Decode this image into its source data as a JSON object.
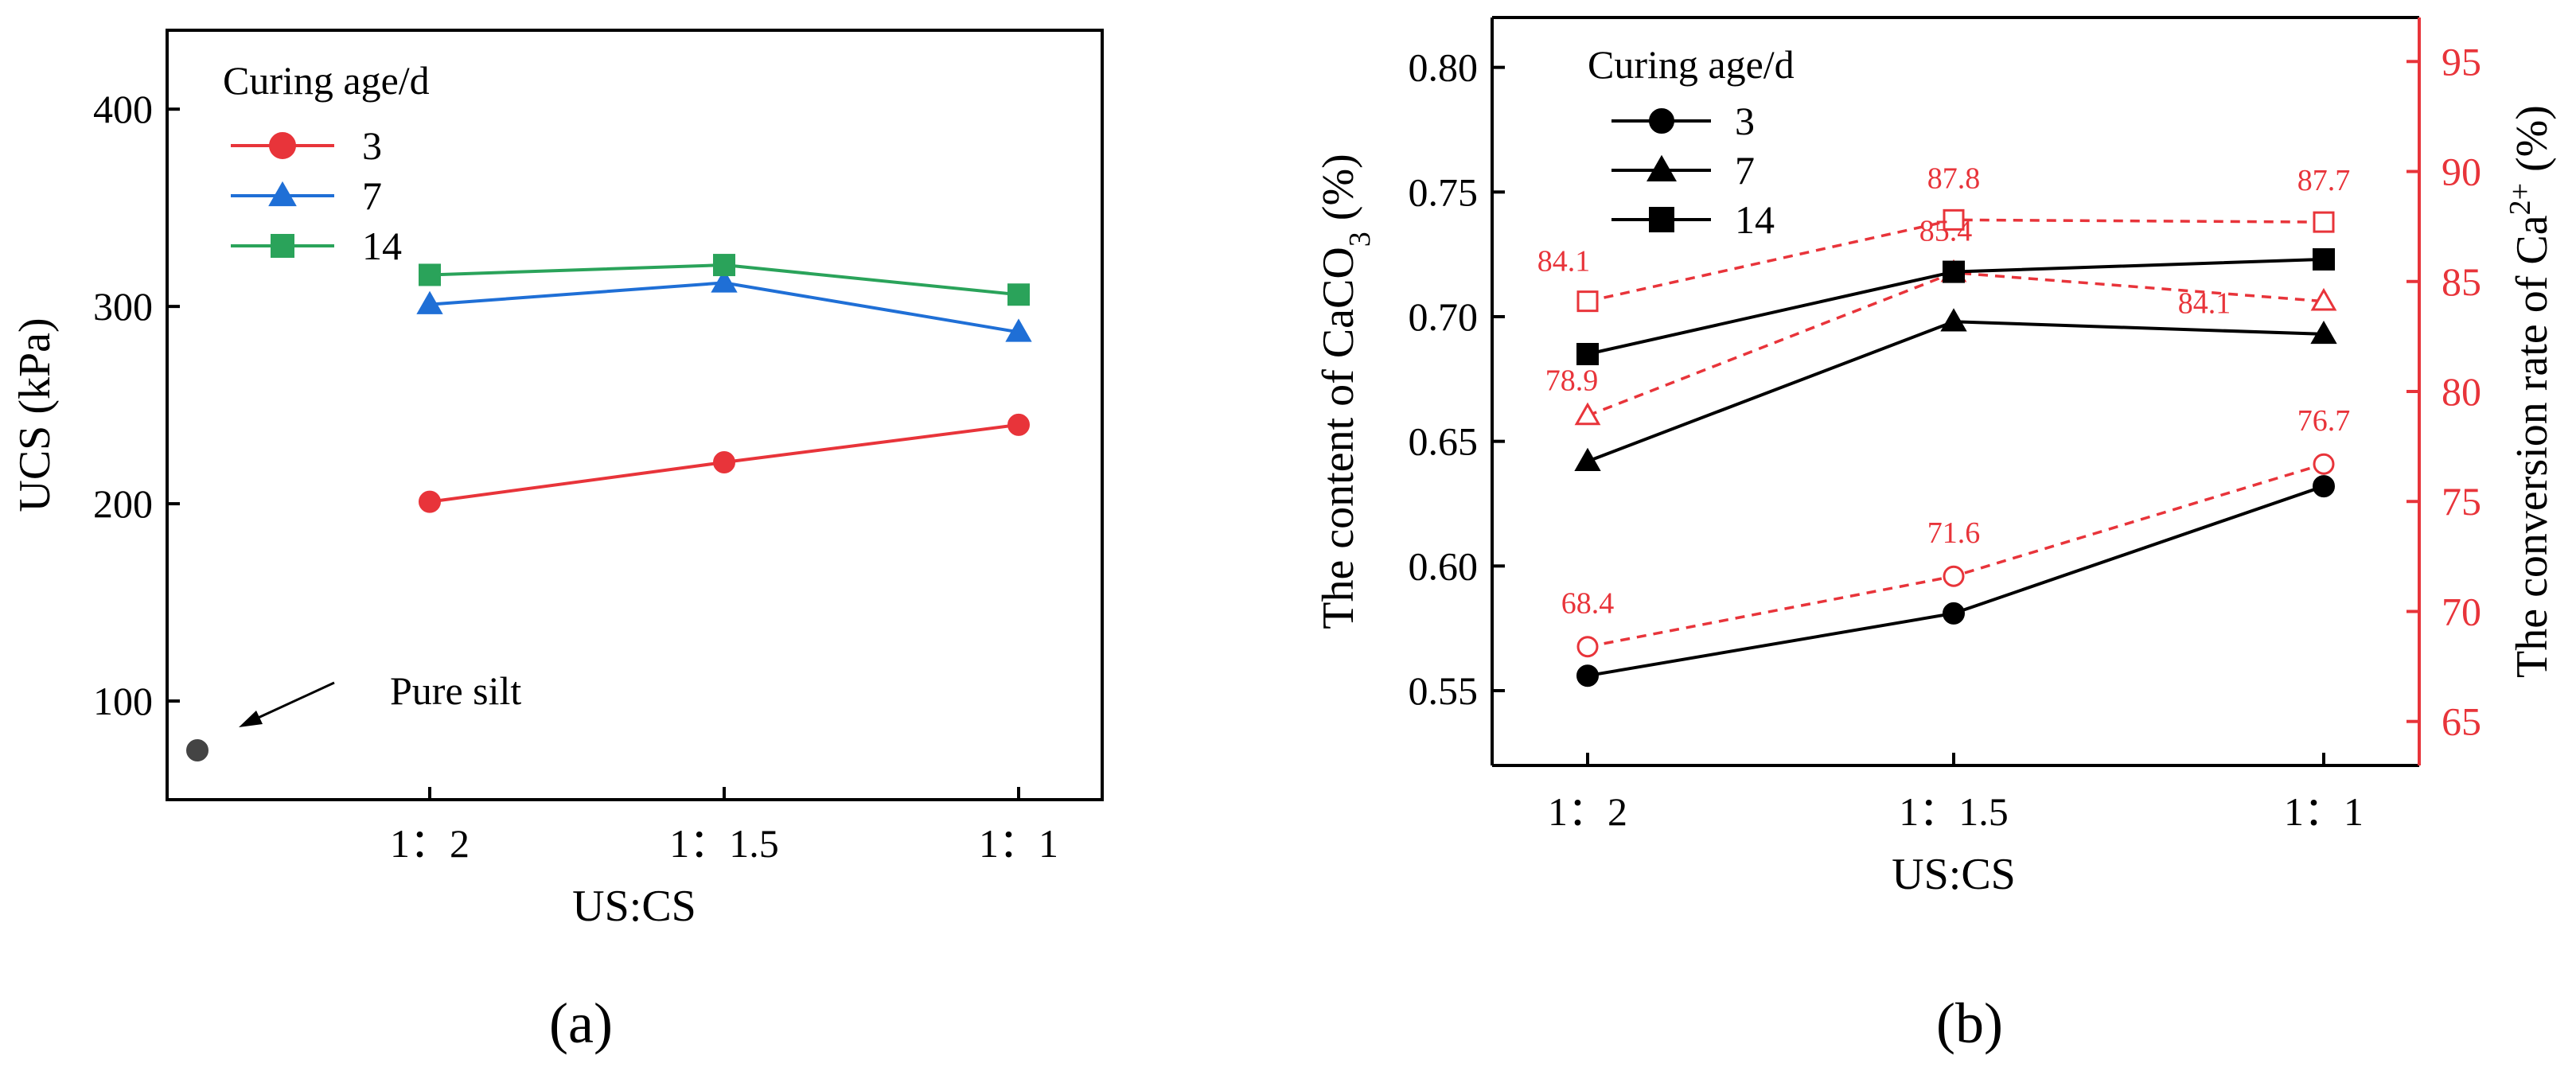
{
  "colors": {
    "red": "#e8343a",
    "blue": "#1f6fd6",
    "green": "#2aa35a",
    "black": "#000000",
    "gray": "#444444"
  },
  "panels": {
    "a": {
      "label": "(a)"
    },
    "b": {
      "label": "(b)"
    }
  },
  "chart_data": [
    {
      "type": "line",
      "panel": "a",
      "categories": [
        "1：2",
        "1：1.5",
        "1：1"
      ],
      "xlabel": "US:CS",
      "ylabel": "UCS (kPa)",
      "ylim": [
        50,
        440
      ],
      "yticks": [
        100,
        200,
        300,
        400
      ],
      "grid": false,
      "legend": {
        "title": "Curing age/d",
        "placement": "top-left"
      },
      "series": [
        {
          "name": "3",
          "values": [
            201,
            221,
            240
          ],
          "marker": "circle",
          "color": "#e8343a"
        },
        {
          "name": "7",
          "values": [
            301,
            312,
            287
          ],
          "marker": "triangle",
          "color": "#1f6fd6"
        },
        {
          "name": "14",
          "values": [
            316,
            321,
            306
          ],
          "marker": "square",
          "color": "#2aa35a"
        }
      ],
      "extra_point": {
        "label": "Pure silt",
        "value": 75,
        "color": "#444444"
      }
    },
    {
      "type": "line",
      "panel": "b",
      "categories": [
        "1：2",
        "1：1.5",
        "1：1"
      ],
      "xlabel": "US:CS",
      "ylabel": "The content of  CaCO3 (%)",
      "ylim": [
        0.52,
        0.82
      ],
      "yticks": [
        0.55,
        0.6,
        0.65,
        0.7,
        0.75,
        0.8
      ],
      "y2label": "The conversion rate of  Ca2+ (%)",
      "y2lim": [
        63,
        97
      ],
      "y2ticks": [
        65,
        70,
        75,
        80,
        85,
        90,
        95
      ],
      "grid": false,
      "legend": {
        "title": "Curing age/d",
        "placement": "top-left"
      },
      "series": [
        {
          "name": "3",
          "values": [
            0.556,
            0.581,
            0.632
          ],
          "marker": "circle",
          "color": "#000000",
          "axis": "left"
        },
        {
          "name": "7",
          "values": [
            0.642,
            0.698,
            0.693
          ],
          "marker": "triangle",
          "color": "#000000",
          "axis": "left"
        },
        {
          "name": "14",
          "values": [
            0.685,
            0.718,
            0.723
          ],
          "marker": "square",
          "color": "#000000",
          "axis": "left"
        }
      ],
      "conversion_series": [
        {
          "values": [
            68.4,
            71.6,
            76.7
          ],
          "labels": [
            "68.4",
            "71.6",
            "76.7"
          ],
          "marker": "circle",
          "color": "#e8343a",
          "axis": "right"
        },
        {
          "values": [
            78.9,
            85.4,
            84.1
          ],
          "labels": [
            "78.9",
            "85.4",
            "84.1"
          ],
          "marker": "triangle",
          "color": "#e8343a",
          "axis": "right"
        },
        {
          "values": [
            84.1,
            87.8,
            87.7
          ],
          "labels": [
            "84.1",
            "87.8",
            "87.7"
          ],
          "marker": "square",
          "color": "#e8343a",
          "axis": "right"
        }
      ]
    }
  ]
}
